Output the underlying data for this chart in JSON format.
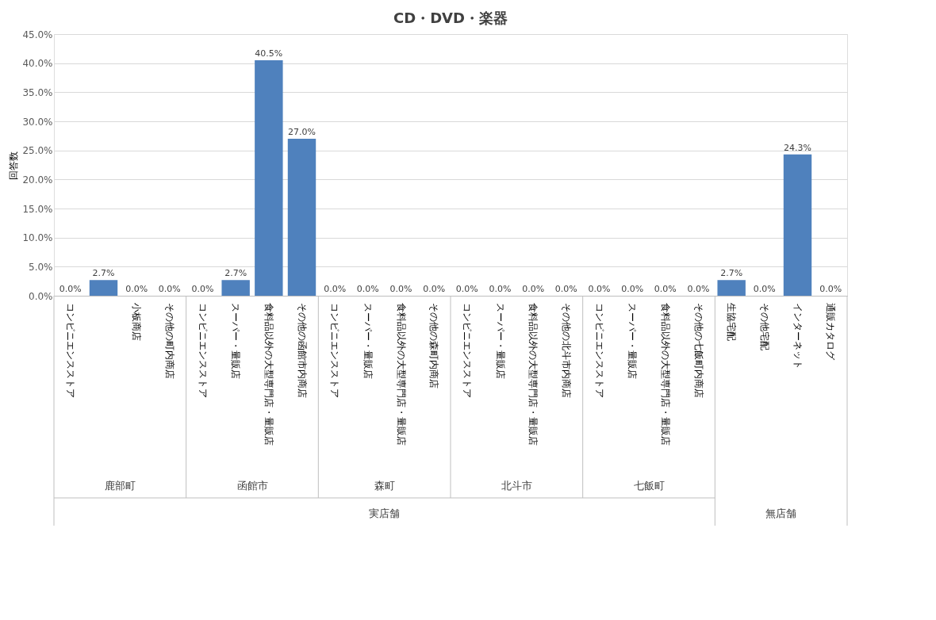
{
  "chart_data": {
    "type": "bar",
    "title": "CD・DVD・楽器",
    "ylabel": "回答数",
    "categories": [
      "コンビニエンスストア",
      null,
      "小板商店",
      "その他の町内商店",
      "コンビニエンスストア",
      "スーパー・量販店",
      "食料品以外の大型専門店・量販店",
      "その他の函館市内商店",
      "コンビニエンスストア",
      "スーパー・量販店",
      "食料品以外の大型専門店・量販店",
      "その他の森町内商店",
      "コンビニエンスストア",
      "スーパー・量販店",
      "食料品以外の大型専門店・量販店",
      "その他の北斗市内商店",
      "コンビニエンスストア",
      "スーパー・量販店",
      "食料品以外の大型専門店・量販店",
      "その他の七飯町内商店",
      "生協宅配",
      "その他宅配",
      "インターネット",
      "通販カタログ"
    ],
    "values": [
      0,
      2.7,
      0,
      0,
      0,
      2.7,
      40.5,
      27.0,
      0,
      0,
      0,
      0,
      0,
      0,
      0,
      0,
      0,
      0,
      0,
      0,
      2.7,
      0,
      24.3,
      0
    ],
    "value_labels": [
      "0.0%",
      "2.7%",
      "0.0%",
      "0.0%",
      "0.0%",
      "2.7%",
      "40.5%",
      "27.0%",
      "0.0%",
      "0.0%",
      "0.0%",
      "0.0%",
      "0.0%",
      "0.0%",
      "0.0%",
      "0.0%",
      "0.0%",
      "0.0%",
      "0.0%",
      "0.0%",
      "2.7%",
      "0.0%",
      "24.3%",
      "0.0%"
    ],
    "color": "#4f81bd",
    "ylim": [
      0,
      45
    ],
    "yticks": [
      {
        "value": 0,
        "label": "0.0%"
      },
      {
        "value": 5,
        "label": "5.0%"
      },
      {
        "value": 10,
        "label": "10.0%"
      },
      {
        "value": 15,
        "label": "15.0%"
      },
      {
        "value": 20,
        "label": "20.0%"
      },
      {
        "value": 25,
        "label": "25.0%"
      },
      {
        "value": 30,
        "label": "30.0%"
      },
      {
        "value": 35,
        "label": "35.0%"
      },
      {
        "value": 40,
        "label": "40.0%"
      },
      {
        "value": 45,
        "label": "45.0%"
      }
    ],
    "grid": "y",
    "legend": false,
    "annotations": [
      "鹿部町",
      "函館市",
      "森町",
      "北斗市",
      "七飯町",
      "実店舗",
      "無店舗"
    ]
  }
}
